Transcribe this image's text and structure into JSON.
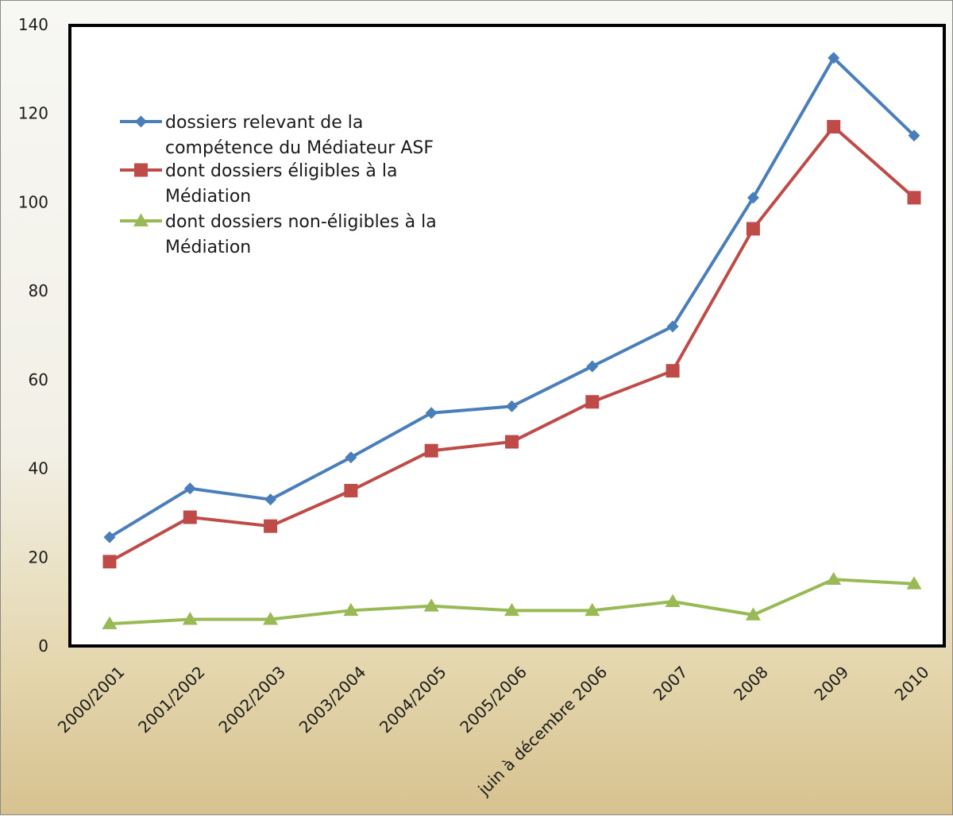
{
  "chart_data": {
    "type": "line",
    "title": "",
    "xlabel": "",
    "ylabel": "",
    "ylim": [
      0,
      140
    ],
    "yticks": [
      0,
      20,
      40,
      60,
      80,
      100,
      120,
      140
    ],
    "grid": false,
    "legend_position": "top-left",
    "categories": [
      "2000/2001",
      "2001/2002",
      "2002/2003",
      "2003/2004",
      "2004/2005",
      "2005/2006",
      "juin à décembre 2006",
      "2007",
      "2008",
      "2009",
      "2010"
    ],
    "series": [
      {
        "name": "dossiers relevant de la compétence du Médiateur ASF",
        "legend_lines": [
          "dossiers relevant de la",
          "compétence du Médiateur ASF"
        ],
        "color": "#4a7ebb",
        "marker": "diamond",
        "values": [
          24.5,
          35.5,
          33,
          42.5,
          52.5,
          54,
          63,
          72,
          101,
          132.5,
          115
        ]
      },
      {
        "name": "dont dossiers éligibles à la Médiation",
        "legend_lines": [
          "dont dossiers éligibles à la",
          "Médiation"
        ],
        "color": "#be4b48",
        "marker": "square",
        "values": [
          19,
          29,
          27,
          35,
          44,
          46,
          55,
          62,
          94,
          117,
          101
        ]
      },
      {
        "name": "dont dossiers non-éligibles à la Médiation",
        "legend_lines": [
          "dont dossiers non-éligibles à la",
          "Médiation"
        ],
        "color": "#98b954",
        "marker": "triangle",
        "values": [
          5,
          6,
          6,
          8,
          9,
          8,
          8,
          10,
          7,
          15,
          14
        ]
      }
    ]
  }
}
